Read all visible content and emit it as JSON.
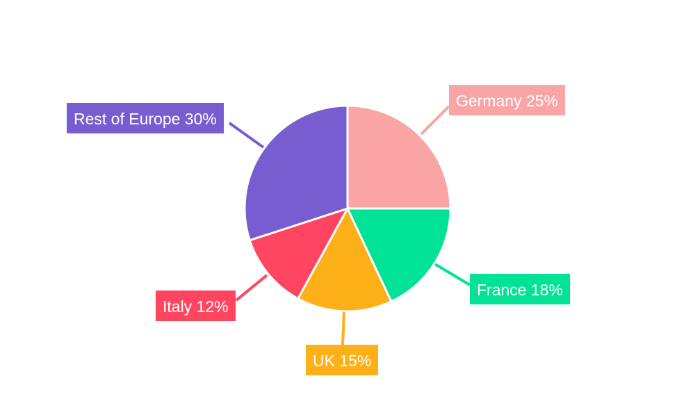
{
  "chart_data": {
    "type": "pie",
    "title": "",
    "start_angle": "top, clockwise",
    "slices": [
      {
        "label": "Germany",
        "value": 25,
        "text": "Germany 25%",
        "color": "#F9A5A6"
      },
      {
        "label": "France",
        "value": 18,
        "text": "France 18%",
        "color": "#00E396"
      },
      {
        "label": "UK",
        "value": 15,
        "text": "UK 15%",
        "color": "#FEB019"
      },
      {
        "label": "Italy",
        "value": 12,
        "text": "Italy 12%",
        "color": "#FF4560"
      },
      {
        "label": "Rest of Europe",
        "value": 30,
        "text": "Rest of Europe 30%",
        "color": "#775DD0"
      }
    ],
    "legend": "none (external labels)"
  }
}
